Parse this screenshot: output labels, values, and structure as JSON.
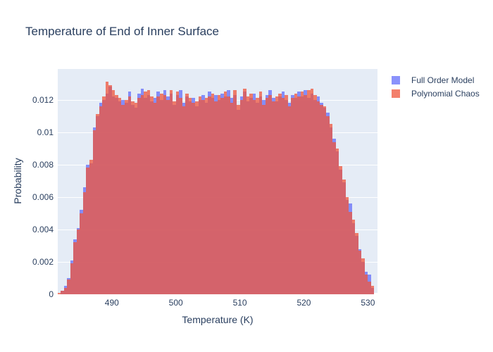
{
  "title": "Temperature of End of Inner Surface",
  "colors": {
    "title_text": "#2a3f5f",
    "plot_background": "#e5ecf6",
    "gridline": "#ffffff",
    "full_order_model": "#636efa",
    "polynomial_chaos": "#ef553b"
  },
  "axes": {
    "x": {
      "title": "Temperature (K)",
      "tick_values": [
        490,
        500,
        510,
        520,
        530
      ],
      "tick_labels": [
        "490",
        "500",
        "510",
        "520",
        "530"
      ]
    },
    "y": {
      "title": "Probability",
      "tick_values": [
        0,
        0.002,
        0.004,
        0.006,
        0.008,
        0.01,
        0.012
      ],
      "tick_labels": [
        "0",
        "0.002",
        "0.004",
        "0.006",
        "0.008",
        "0.01",
        "0.012"
      ]
    }
  },
  "chart_data": {
    "type": "bar",
    "subtype": "overlaid-histogram",
    "barmode": "overlay",
    "opacity": 0.75,
    "title": "Temperature of End of Inner Surface",
    "xlabel": "Temperature (K)",
    "ylabel": "Probability",
    "xlim": [
      481.55,
      531.5
    ],
    "ylim": [
      0,
      0.0139
    ],
    "grid": "horizontal-only",
    "legend_position": "top-right-outside",
    "bin_start": 481.5,
    "bin_width": 0.5,
    "series": [
      {
        "name": "Full Order Model",
        "color": "#636efa",
        "values": [
          0.0,
          0.0002,
          0.0005,
          0.001,
          0.0021,
          0.0034,
          0.0041,
          0.0052,
          0.0066,
          0.008,
          0.0081,
          0.0103,
          0.011,
          0.0118,
          0.012,
          0.0124,
          0.0128,
          0.0122,
          0.0121,
          0.0119,
          0.012,
          0.0118,
          0.0125,
          0.0117,
          0.0115,
          0.0124,
          0.0127,
          0.0121,
          0.0123,
          0.0119,
          0.0121,
          0.0125,
          0.012,
          0.0126,
          0.0122,
          0.0124,
          0.0117,
          0.0123,
          0.0126,
          0.0118,
          0.0122,
          0.0119,
          0.0121,
          0.0116,
          0.012,
          0.0123,
          0.0118,
          0.0125,
          0.0121,
          0.0123,
          0.012,
          0.0124,
          0.0122,
          0.0126,
          0.0121,
          0.0123,
          0.0114,
          0.0122,
          0.0125,
          0.0119,
          0.0121,
          0.0124,
          0.0118,
          0.0122,
          0.012,
          0.0123,
          0.0126,
          0.0121,
          0.0119,
          0.0122,
          0.0125,
          0.012,
          0.0118,
          0.0123,
          0.0121,
          0.0125,
          0.0122,
          0.0126,
          0.0121,
          0.0124,
          0.012,
          0.0122,
          0.0118,
          0.0115,
          0.0112,
          0.0103,
          0.0096,
          0.0088,
          0.0077,
          0.0069,
          0.0058,
          0.0056,
          0.0044,
          0.0036,
          0.0028,
          0.002,
          0.0014,
          0.0012,
          0.0004
        ]
      },
      {
        "name": "Polynomial Chaos",
        "color": "#ef553b",
        "values": [
          0.0001,
          0.0002,
          0.0004,
          0.0009,
          0.0019,
          0.0032,
          0.004,
          0.005,
          0.0063,
          0.0078,
          0.0083,
          0.0101,
          0.0111,
          0.0116,
          0.0122,
          0.0131,
          0.0129,
          0.0126,
          0.0123,
          0.0121,
          0.0117,
          0.012,
          0.0122,
          0.0119,
          0.0118,
          0.0121,
          0.0123,
          0.0125,
          0.0126,
          0.0122,
          0.0118,
          0.0122,
          0.0124,
          0.0123,
          0.012,
          0.0126,
          0.0119,
          0.0125,
          0.0121,
          0.0116,
          0.0124,
          0.0121,
          0.0118,
          0.0119,
          0.0122,
          0.012,
          0.0121,
          0.0122,
          0.0124,
          0.0119,
          0.0123,
          0.0121,
          0.0125,
          0.0122,
          0.0118,
          0.0126,
          0.0117,
          0.012,
          0.0127,
          0.0122,
          0.0124,
          0.012,
          0.0121,
          0.0125,
          0.0117,
          0.0121,
          0.0123,
          0.0119,
          0.0122,
          0.0124,
          0.0121,
          0.0123,
          0.0116,
          0.0121,
          0.0124,
          0.0122,
          0.0125,
          0.0123,
          0.0126,
          0.0127,
          0.0123,
          0.0119,
          0.0117,
          0.0116,
          0.011,
          0.0105,
          0.0094,
          0.009,
          0.0079,
          0.0071,
          0.006,
          0.0051,
          0.0046,
          0.0038,
          0.0027,
          0.0022,
          0.0012,
          0.0008,
          0.0005
        ]
      }
    ]
  }
}
